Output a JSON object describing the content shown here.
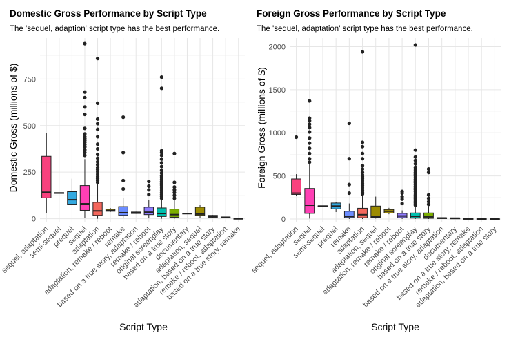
{
  "colors": {
    "sequel, adaptation": "#F8417E",
    "semi-sequel": "#B85FFF",
    "prequel": "#33A9E0",
    "sequel": "#FF3FB5",
    "adaptation": "#F4675C",
    "adaptation, remake / reboot": "#B79F00",
    "remake": "#6B8CFF",
    "based on a true story, adaptation": "#00B8A0",
    "remake / reboot": "#8F7BFF",
    "original screenplay": "#00BFAE",
    "based on a true story": "#7CAE00",
    "documentary": "#8A9E00",
    "adaptation, sequel": "#9C8B00",
    "adaptation, based on a true story": "#00B0F6",
    "remake / reboot, adaptation": "#FF61C3",
    "based on a true story, remake": "#C77CFF"
  },
  "chart_data": [
    {
      "type": "box",
      "title": "Domestic Gross Performance by Script Type",
      "subtitle": "The 'sequel, adaption' script type has the best performance.",
      "xlabel": "Script Type",
      "ylabel": "Domestic Gross (millions of $)",
      "ylim": [
        -20,
        970
      ],
      "yticks": [
        0,
        250,
        500,
        750
      ],
      "categories": [
        "sequel, adaptation",
        "semi-sequel",
        "prequel",
        "sequel",
        "adaptation",
        "adaptation, remake / reboot",
        "remake",
        "based on a true story, adaptation",
        "remake / reboot",
        "original screenplay",
        "based on a true story",
        "documentary",
        "adaptation, sequel",
        "adaptation, based on a true story",
        "remake / reboot, adaptation",
        "based on a true story, remake"
      ],
      "boxes": [
        {
          "q1": 112,
          "median": 142,
          "q3": 335,
          "whislo": 30,
          "whishi": 460,
          "outliers": []
        },
        {
          "q1": 136,
          "median": 138,
          "q3": 140,
          "whislo": 136,
          "whishi": 140,
          "outliers": []
        },
        {
          "q1": 78,
          "median": 102,
          "q3": 145,
          "whislo": 72,
          "whishi": 215,
          "outliers": []
        },
        {
          "q1": 45,
          "median": 80,
          "q3": 178,
          "whislo": 5,
          "whishi": 320,
          "outliers": [
            340,
            355,
            370,
            385,
            398,
            410,
            420,
            430,
            440,
            455,
            485,
            560,
            600,
            650,
            680,
            940
          ]
        },
        {
          "q1": 18,
          "median": 42,
          "q3": 88,
          "whislo": 0,
          "whishi": 185,
          "outliers": [
            195,
            205,
            215,
            225,
            235,
            245,
            255,
            265,
            275,
            290,
            305,
            325,
            345,
            375,
            400,
            440,
            480,
            510,
            535,
            620,
            860
          ]
        },
        {
          "q1": 40,
          "median": 45,
          "q3": 52,
          "whislo": 36,
          "whishi": 58,
          "outliers": []
        },
        {
          "q1": 18,
          "median": 32,
          "q3": 65,
          "whislo": 2,
          "whishi": 110,
          "outliers": [
            160,
            205,
            355,
            545
          ]
        },
        {
          "q1": 28,
          "median": 32,
          "q3": 36,
          "whislo": 26,
          "whishi": 38,
          "outliers": []
        },
        {
          "q1": 22,
          "median": 35,
          "q3": 62,
          "whislo": 2,
          "whishi": 100,
          "outliers": [
            130,
            155,
            175,
            200
          ]
        },
        {
          "q1": 12,
          "median": 28,
          "q3": 58,
          "whislo": 0,
          "whishi": 100,
          "outliers": [
            110,
            120,
            130,
            140,
            150,
            160,
            170,
            180,
            190,
            200,
            210,
            220,
            230,
            245,
            260,
            280,
            300,
            320,
            340,
            355,
            365,
            700,
            760
          ]
        },
        {
          "q1": 8,
          "median": 22,
          "q3": 52,
          "whislo": 0,
          "whishi": 100,
          "outliers": [
            110,
            125,
            140,
            155,
            170,
            195,
            350
          ]
        },
        {
          "q1": 26,
          "median": 28,
          "q3": 30,
          "whislo": 26,
          "whishi": 30,
          "outliers": []
        },
        {
          "q1": 18,
          "median": 25,
          "q3": 62,
          "whislo": 5,
          "whishi": 75,
          "outliers": []
        },
        {
          "q1": 8,
          "median": 12,
          "q3": 18,
          "whislo": 5,
          "whishi": 20,
          "outliers": []
        },
        {
          "q1": 7,
          "median": 8,
          "q3": 9,
          "whislo": 7,
          "whishi": 9,
          "outliers": []
        },
        {
          "q1": 0,
          "median": 1,
          "q3": 2,
          "whislo": 0,
          "whishi": 2,
          "outliers": []
        }
      ]
    },
    {
      "type": "box",
      "title": "Foreign Gross Performance by Script Type",
      "subtitle": "The 'sequel, adaptation' script type has the best performance.",
      "xlabel": "Script Type",
      "ylabel": "Foreign Gross (millions of $)",
      "ylim": [
        -40,
        2100
      ],
      "yticks": [
        0,
        500,
        1000,
        1500,
        2000
      ],
      "categories": [
        "sequel, adaptation",
        "sequel",
        "semi-sequel",
        "prequel",
        "remake",
        "adaptation",
        "adaptation, sequel",
        "adaptation, remake / reboot",
        "remake / reboot",
        "original screenplay",
        "based on a true story",
        "based on a true story, adaptation",
        "documentary",
        "based on a true story, remake",
        "remake / reboot, adaptation",
        "adaptation, based on a true story"
      ],
      "boxes": [
        {
          "q1": 285,
          "median": 300,
          "q3": 465,
          "whislo": 270,
          "whishi": 520,
          "outliers": [
            950
          ]
        },
        {
          "q1": 65,
          "median": 160,
          "q3": 355,
          "whislo": 5,
          "whishi": 640,
          "outliers": [
            660,
            700,
            760,
            820,
            880,
            940,
            1010,
            1060,
            1100,
            1140,
            1170,
            1370
          ]
        },
        {
          "q1": 148,
          "median": 150,
          "q3": 152,
          "whislo": 148,
          "whishi": 152,
          "outliers": []
        },
        {
          "q1": 118,
          "median": 150,
          "q3": 185,
          "whislo": 80,
          "whishi": 200,
          "outliers": []
        },
        {
          "q1": 15,
          "median": 30,
          "q3": 90,
          "whislo": 0,
          "whishi": 180,
          "outliers": [
            300,
            400,
            700,
            1110
          ]
        },
        {
          "q1": 15,
          "median": 50,
          "q3": 125,
          "whislo": 0,
          "whishi": 270,
          "outliers": [
            290,
            310,
            330,
            350,
            370,
            390,
            410,
            430,
            450,
            470,
            490,
            510,
            540,
            580,
            620,
            700,
            760,
            840,
            890,
            1940
          ]
        },
        {
          "q1": 20,
          "median": 30,
          "q3": 150,
          "whislo": 5,
          "whishi": 260,
          "outliers": []
        },
        {
          "q1": 70,
          "median": 90,
          "q3": 110,
          "whislo": 55,
          "whishi": 130,
          "outliers": []
        },
        {
          "q1": 15,
          "median": 35,
          "q3": 65,
          "whislo": 0,
          "whishi": 100,
          "outliers": [
            180,
            230,
            260,
            300,
            320
          ]
        },
        {
          "q1": 10,
          "median": 30,
          "q3": 70,
          "whislo": 0,
          "whishi": 150,
          "outliers": [
            160,
            175,
            190,
            205,
            220,
            235,
            250,
            265,
            280,
            300,
            320,
            340,
            360,
            380,
            400,
            420,
            440,
            460,
            480,
            500,
            520,
            540,
            560,
            580,
            600,
            640,
            680,
            720,
            800,
            2020
          ]
        },
        {
          "q1": 8,
          "median": 25,
          "q3": 70,
          "whislo": 0,
          "whishi": 150,
          "outliers": [
            170,
            200,
            240,
            280,
            540,
            580
          ]
        },
        {
          "q1": 10,
          "median": 12,
          "q3": 14,
          "whislo": 10,
          "whishi": 14,
          "outliers": []
        },
        {
          "q1": 8,
          "median": 10,
          "q3": 12,
          "whislo": 8,
          "whishi": 12,
          "outliers": []
        },
        {
          "q1": 4,
          "median": 5,
          "q3": 6,
          "whislo": 4,
          "whishi": 6,
          "outliers": []
        },
        {
          "q1": 3,
          "median": 4,
          "q3": 5,
          "whislo": 3,
          "whishi": 5,
          "outliers": []
        },
        {
          "q1": 1,
          "median": 2,
          "q3": 3,
          "whislo": 1,
          "whishi": 3,
          "outliers": []
        }
      ]
    }
  ]
}
